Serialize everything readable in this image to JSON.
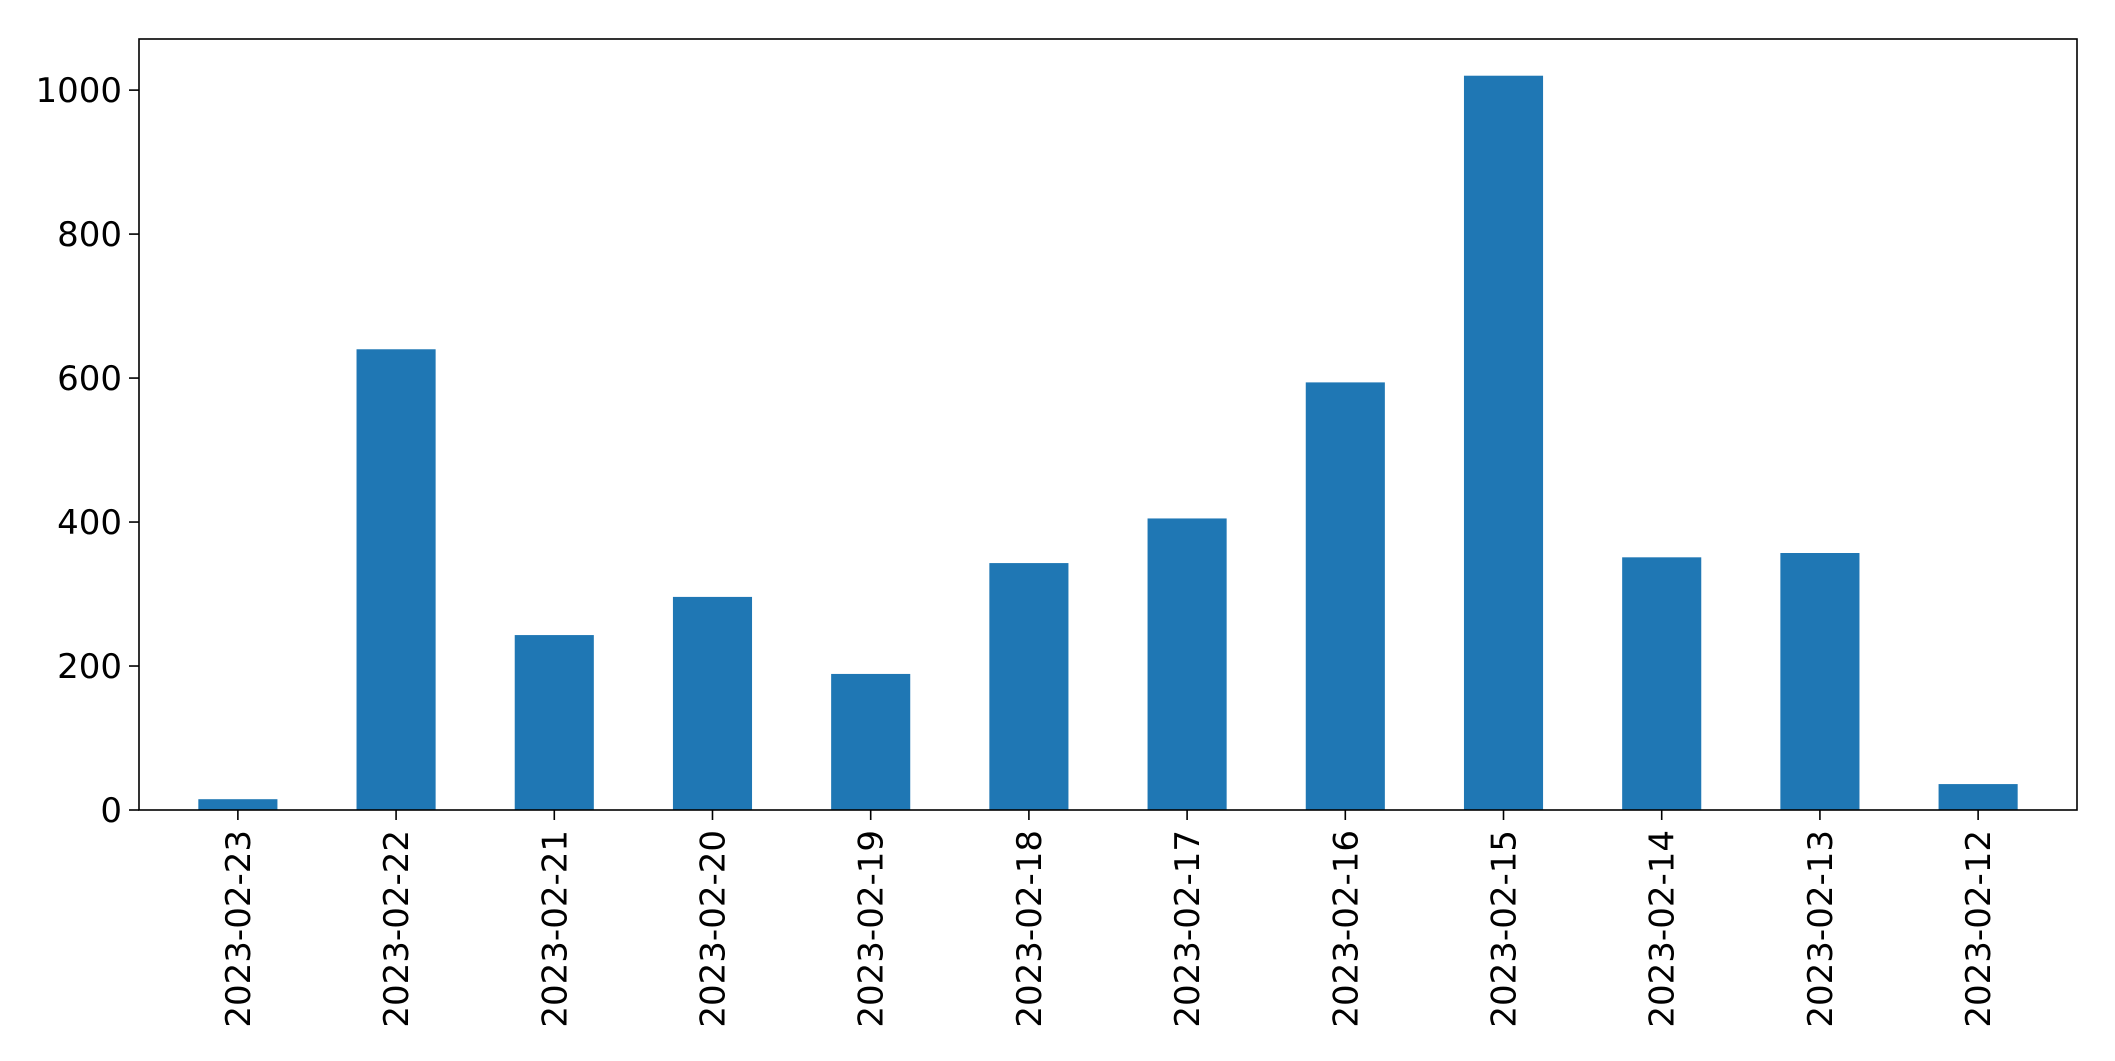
{
  "chart_data": {
    "type": "bar",
    "title": "",
    "xlabel": "",
    "ylabel": "",
    "categories": [
      "2023-02-23",
      "2023-02-22",
      "2023-02-21",
      "2023-02-20",
      "2023-02-19",
      "2023-02-18",
      "2023-02-17",
      "2023-02-16",
      "2023-02-15",
      "2023-02-14",
      "2023-02-13",
      "2023-02-12"
    ],
    "values": [
      15,
      640,
      243,
      296,
      189,
      343,
      405,
      594,
      1020,
      351,
      357,
      36
    ],
    "ylim": [
      0,
      1071
    ],
    "yticks": [
      0,
      200,
      400,
      600,
      800,
      1000
    ],
    "bar_color": "#1f77b4",
    "grid": false,
    "legend": "none"
  }
}
